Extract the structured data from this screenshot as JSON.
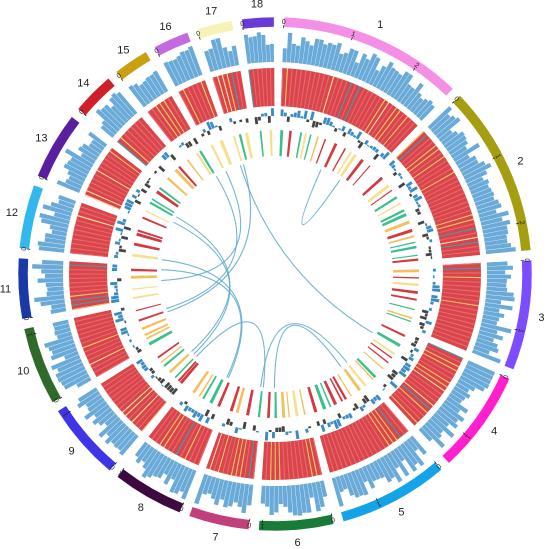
{
  "chromosomes": [
    {
      "label": "1",
      "color": "#f48fe6",
      "ticks": [
        "0",
        "1",
        "2"
      ],
      "length": 2.6
    },
    {
      "label": "2",
      "color": "#a59e10",
      "ticks": [
        "0",
        "1",
        "2"
      ],
      "length": 2.4
    },
    {
      "label": "3",
      "color": "#7c4dff",
      "ticks": [
        "0",
        "1"
      ],
      "length": 1.55
    },
    {
      "label": "4",
      "color": "#ff1fcf",
      "ticks": [
        "0",
        "1"
      ],
      "length": 1.45
    },
    {
      "label": "5",
      "color": "#14a2e8",
      "ticks": [
        "0",
        "1"
      ],
      "length": 1.55
    },
    {
      "label": "6",
      "color": "#1a7a38",
      "ticks": [
        "0",
        "1"
      ],
      "length": 1.05
    },
    {
      "label": "7",
      "color": "#c2407a",
      "ticks": [
        "0",
        "1"
      ],
      "length": 0.85
    },
    {
      "label": "8",
      "color": "#3d0a3f",
      "ticks": [
        "0",
        "1"
      ],
      "length": 1.0
    },
    {
      "label": "9",
      "color": "#3e36e6",
      "ticks": [
        "0",
        "1"
      ],
      "length": 1.1
    },
    {
      "label": "10",
      "color": "#2f6a2a",
      "ticks": [
        "0",
        "1"
      ],
      "length": 1.1
    },
    {
      "label": "11",
      "color": "#1b3aa8",
      "ticks": [
        "0",
        "1"
      ],
      "length": 0.85
    },
    {
      "label": "12",
      "color": "#33b8ee",
      "ticks": [
        "0",
        "1"
      ],
      "length": 0.9
    },
    {
      "label": "13",
      "color": "#5a1fa0",
      "ticks": [
        "0",
        "1"
      ],
      "length": 0.95
    },
    {
      "label": "14",
      "color": "#d01f28",
      "ticks": [
        "0"
      ],
      "length": 0.6
    },
    {
      "label": "15",
      "color": "#c8a012",
      "ticks": [
        "0"
      ],
      "length": 0.5
    },
    {
      "label": "16",
      "color": "#c46ae0",
      "ticks": [
        "0"
      ],
      "length": 0.5
    },
    {
      "label": "17",
      "color": "#f6f2b8",
      "ticks": [
        "0"
      ],
      "length": 0.5
    },
    {
      "label": "18",
      "color": "#6a3ad8",
      "ticks": [
        "0"
      ],
      "length": 0.45
    }
  ],
  "colors": {
    "density_bar": "#6aaad8",
    "heat_main": "#d9454a",
    "heat_alt": [
      "#f0c968",
      "#3aa0b8",
      "#f5e3a0"
    ],
    "line_pos": "#3a8dc4",
    "line_neg": "#444444",
    "inner_marks": [
      "#3cc08a",
      "#f5e08c",
      "#d23a42",
      "#f2c060"
    ],
    "link": "#5aa8cc"
  },
  "links": [
    [
      0.52,
      0.78
    ],
    [
      6.1,
      4.05
    ],
    [
      6.0,
      8.2
    ],
    [
      7.15,
      11.1
    ],
    [
      7.2,
      10.9
    ],
    [
      8.3,
      12.3
    ],
    [
      8.4,
      12.5
    ],
    [
      9.6,
      16.2
    ],
    [
      9.7,
      14.9
    ],
    [
      10.5,
      15.3
    ],
    [
      3.3,
      16.0
    ],
    [
      5.8,
      4.2
    ]
  ]
}
